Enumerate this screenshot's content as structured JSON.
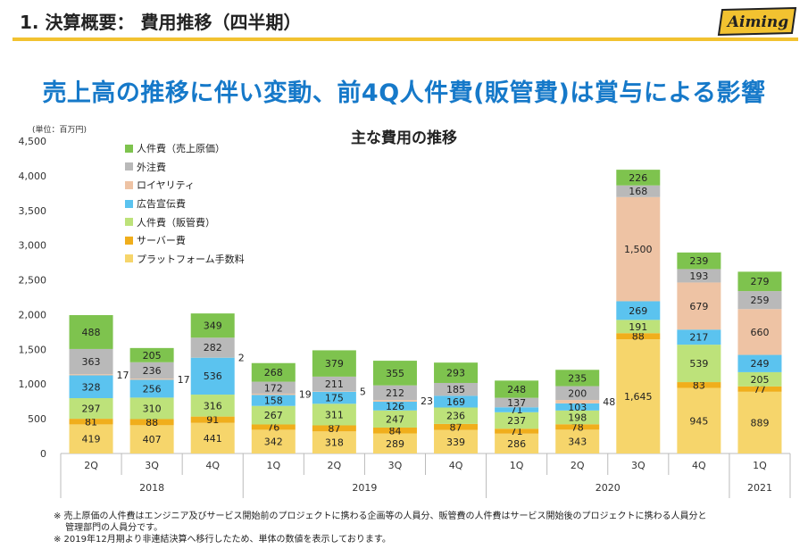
{
  "header": {
    "title": "1. 決算概要： 費用推移（四半期）",
    "logo_text": "Aiming"
  },
  "headline": "売上高の推移に伴い変動、前4Q人件費(販管費)は賞与による影響",
  "chart": {
    "unit_label": "(単位：百万円)"
  },
  "notes": [
    "※ 売上原価の人件費はエンジニア及びサービス開始前のプロジェクトに携わる企画等の人員分、販管費の人件費はサービス開始後のプロジェクトに携わる人員分と",
    "　 管理部門の人員分です。",
    "※ 2019年12月期より非連結決算へ移行したため、単体の数値を表示しております。"
  ],
  "colors": {
    "platform": "#f6d56b",
    "server": "#f0ae1c",
    "sga_personnel": "#bde27a",
    "advertising": "#5bc3ef",
    "royalty": "#eec3a4",
    "outsourcing": "#b9b9b9",
    "cogs_personnel": "#7ec34e",
    "accent": "#1679c9",
    "header_line": "#f2c230"
  },
  "chart_data": {
    "type": "bar",
    "stacked": true,
    "title": "主な費用の推移",
    "ylabel": "(単位：百万円)",
    "ylim": [
      0,
      4500
    ],
    "yticks": [
      "0",
      "500",
      "1,000",
      "1,500",
      "2,000",
      "2,500",
      "3,000",
      "3,500",
      "4,000",
      "4,500"
    ],
    "ytick_values": [
      0,
      500,
      1000,
      1500,
      2000,
      2500,
      3000,
      3500,
      4000,
      4500
    ],
    "categories": [
      "2Q",
      "3Q",
      "4Q",
      "1Q",
      "2Q",
      "3Q",
      "4Q",
      "1Q",
      "2Q",
      "3Q",
      "4Q",
      "1Q"
    ],
    "year_groups": [
      {
        "label": "2018",
        "span": 3
      },
      {
        "label": "2019",
        "span": 4
      },
      {
        "label": "2020",
        "span": 4
      },
      {
        "label": "2021",
        "span": 1
      }
    ],
    "series": [
      {
        "key": "platform",
        "name": "プラットフォーム手数料",
        "values": [
          419,
          407,
          441,
          342,
          318,
          289,
          339,
          286,
          343,
          1645,
          945,
          889
        ]
      },
      {
        "key": "server",
        "name": "サーバー費",
        "values": [
          81,
          88,
          91,
          76,
          87,
          84,
          87,
          71,
          78,
          88,
          83,
          77
        ]
      },
      {
        "key": "sga_personnel",
        "name": "人件費（販管費）",
        "values": [
          297,
          310,
          316,
          267,
          311,
          247,
          236,
          237,
          198,
          191,
          539,
          205
        ]
      },
      {
        "key": "advertising",
        "name": "広告宣伝費",
        "values": [
          328,
          256,
          536,
          158,
          175,
          126,
          169,
          71,
          103,
          269,
          217,
          249
        ]
      },
      {
        "key": "royalty",
        "name": "ロイヤリティ",
        "values": [
          17,
          17,
          2,
          19,
          5,
          23,
          0,
          0,
          48,
          1500,
          679,
          660
        ]
      },
      {
        "key": "outsourcing",
        "name": "外注費",
        "values": [
          363,
          236,
          282,
          172,
          211,
          212,
          185,
          137,
          200,
          168,
          193,
          259
        ]
      },
      {
        "key": "cogs_personnel",
        "name": "人件費（売上原価）",
        "values": [
          488,
          205,
          349,
          268,
          379,
          355,
          293,
          248,
          235,
          226,
          239,
          279
        ]
      }
    ],
    "legend_order": [
      "cogs_personnel",
      "outsourcing",
      "royalty",
      "advertising",
      "sga_personnel",
      "server",
      "platform"
    ],
    "value_labels": {
      "platform": [
        "419",
        "407",
        "441",
        "342",
        "318",
        "289",
        "339",
        "286",
        "343",
        "1,645",
        "945",
        "889"
      ],
      "server": [
        "81",
        "88",
        "91",
        "76",
        "87",
        "84",
        "87",
        "71",
        "78",
        "88",
        "83",
        "77"
      ],
      "sga_personnel": [
        "297",
        "310",
        "316",
        "267",
        "311",
        "247",
        "236",
        "237",
        "198",
        "191",
        "539",
        "205"
      ],
      "advertising": [
        "328",
        "256",
        "536",
        "158",
        "175",
        "126",
        "169",
        "71",
        "103",
        "269",
        "217",
        "249"
      ],
      "royalty": [
        "17",
        "17",
        "2",
        "19",
        "5",
        "23",
        "",
        "",
        "48",
        "1,500",
        "679",
        "660"
      ],
      "outsourcing": [
        "363",
        "236",
        "282",
        "172",
        "211",
        "212",
        "185",
        "137",
        "200",
        "168",
        "193",
        "259"
      ],
      "cogs_personnel": [
        "488",
        "205",
        "349",
        "268",
        "379",
        "355",
        "293",
        "248",
        "235",
        "226",
        "239",
        "279"
      ]
    },
    "legend_position": "top-left"
  }
}
